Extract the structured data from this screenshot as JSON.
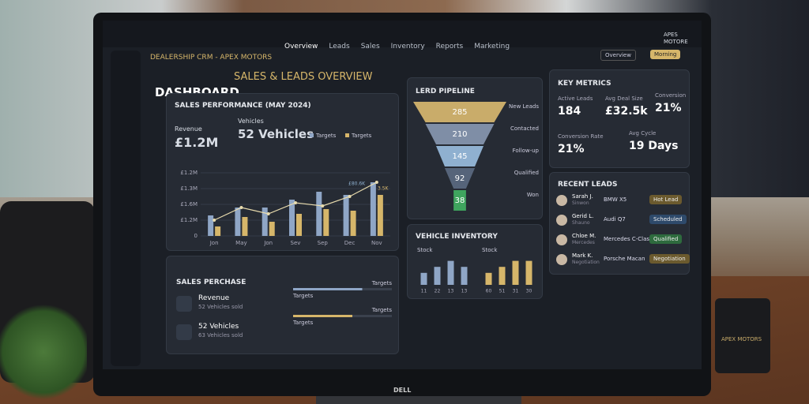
{
  "app": {
    "brand": "DEALERSHIP CRM - APEX MOTORS",
    "nav": [
      "Overview",
      "Leads",
      "Sales",
      "Inventory",
      "Reports",
      "Marketing"
    ],
    "user": [
      "APES",
      "MOTORE"
    ],
    "controls": [
      "Overview",
      "Morning"
    ]
  },
  "header": {
    "title": "DASHBOARD",
    "subtitle": "SALES & LEADS OVERVIEW"
  },
  "sales_performance": {
    "title": "SALES PERFORMANCE (MAY 2024)",
    "kpis": [
      {
        "label": "Revenue",
        "value": "£1.2M"
      },
      {
        "label": "Vehicles",
        "value": "52 Vehicles"
      }
    ],
    "chart_data": {
      "type": "bar",
      "categories": [
        "Jon",
        "May",
        "Jon",
        "Sev",
        "Sep",
        "Dec",
        "Nov"
      ],
      "series": [
        {
          "name": "Targets",
          "color": "#8fa6c6",
          "values": [
            1.3,
            1.8,
            1.8,
            2.3,
            2.8,
            2.6,
            3.4
          ]
        },
        {
          "name": "Targets",
          "color": "#d6b66a",
          "values": [
            0.6,
            1.2,
            0.9,
            1.4,
            1.7,
            1.6,
            2.6
          ]
        },
        {
          "type": "line",
          "color": "#e9dcae",
          "values": [
            1.0,
            1.8,
            1.4,
            2.1,
            1.9,
            2.5,
            3.4
          ]
        }
      ],
      "ylim": [
        0,
        4
      ],
      "yticks": [
        {
          "value": 0,
          "label": "0"
        },
        {
          "value": 1,
          "label": "£1.2M"
        },
        {
          "value": 2,
          "label": "£1.6M"
        },
        {
          "value": 3,
          "label": "£1.3M"
        },
        {
          "value": 4,
          "label": "£1.2M"
        }
      ],
      "annotations": [
        "£80.6K",
        "3.5K"
      ]
    }
  },
  "lead_pipeline": {
    "title": "LERD PIPELINE",
    "chart_data": {
      "type": "funnel",
      "categories": [
        "New Leads",
        "Contacted",
        "Follow-up",
        "Qualified",
        "Won"
      ],
      "values": [
        285,
        210,
        145,
        92,
        38
      ],
      "colors": [
        "#c9ac6a",
        "#7f8ea6",
        "#8fb0d0",
        "#56647a",
        "#3fa45e"
      ]
    }
  },
  "key_metrics": {
    "title": "KEY METRICS",
    "items": [
      {
        "label": "Active Leads",
        "value": "184"
      },
      {
        "label": "Avg Deal Size",
        "value": "£32.5k"
      },
      {
        "label": "Conversion",
        "value": "21%"
      },
      {
        "label": "Conversion Rate",
        "value": "21%"
      },
      {
        "label": "Avg Cycle",
        "value": "19 Days"
      }
    ]
  },
  "recent_leads": {
    "title": "RECENT LEADS",
    "rows": [
      {
        "name": "Sarah J.",
        "detail": "Sinwon",
        "vehicle": "BMW X5",
        "status": "Hot Lead"
      },
      {
        "name": "Gerid L.",
        "detail": "Shauno",
        "vehicle": "Audi Q7",
        "status": "Scheduled"
      },
      {
        "name": "Chloe M.",
        "detail": "Mercedes",
        "vehicle": "Mercedes C-Class",
        "status": "Qualified"
      },
      {
        "name": "Mark K.",
        "detail": "Negotiation",
        "vehicle": "Porsche Macan",
        "status": "Negotiation"
      }
    ]
  },
  "vehicle_inventory": {
    "title": "VEHICLE INVENTORY",
    "charts": [
      {
        "type": "bar",
        "label": "Stock",
        "categories": [
          "11",
          "22",
          "13",
          "13"
        ],
        "values": [
          2,
          3,
          4,
          3
        ],
        "ylim": [
          0,
          5
        ],
        "color": "#8fa6c6"
      },
      {
        "type": "bar",
        "label": "Stock",
        "categories": [
          "60",
          "51",
          "31",
          "30"
        ],
        "values": [
          2,
          3,
          4,
          4
        ],
        "ylim": [
          0,
          5
        ],
        "color": "#d6b66a"
      }
    ]
  },
  "sales_purchase": {
    "title": "SALES PERCHASE",
    "items": [
      {
        "label": "Revenue",
        "detail": "52 Vehicles sold"
      },
      {
        "label": "52 Vehicles",
        "detail": "63 Vehicles sold"
      }
    ],
    "targets": [
      {
        "label": "Targets",
        "note": "Targets",
        "value": 70,
        "color": "#8fa6c6"
      },
      {
        "label": "Targets",
        "note": "Targets",
        "value": 60,
        "color": "#d6b66a"
      }
    ],
    "xlim": [
      0,
      100
    ]
  },
  "monitor": {
    "brand": "DELL"
  },
  "mug": {
    "brand": "APEX MOTORS"
  }
}
